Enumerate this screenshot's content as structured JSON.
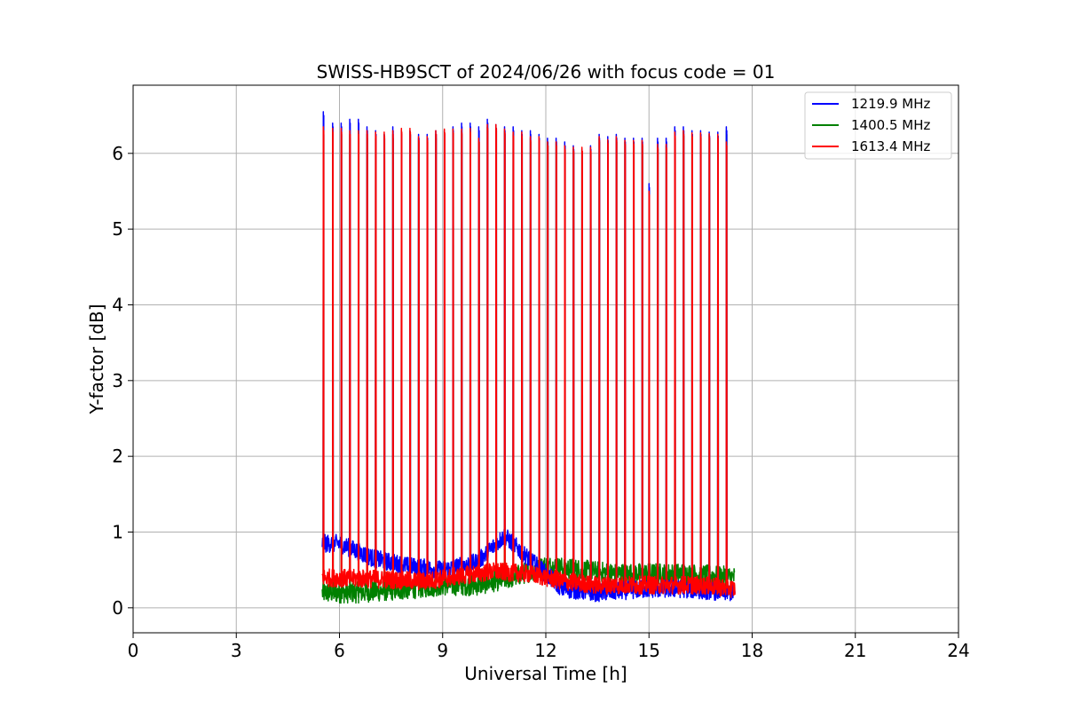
{
  "chart_data": {
    "type": "line",
    "title": "SWISS-HB9SCT of 2024/06/26 with focus code = 01",
    "xlabel": "Universal Time [h]",
    "ylabel": "Y-factor [dB]",
    "xlim": [
      0,
      24
    ],
    "ylim": [
      -0.33,
      6.9
    ],
    "xticks": [
      "0",
      "3",
      "6",
      "9",
      "12",
      "15",
      "18",
      "21",
      "24"
    ],
    "yticks": [
      "0",
      "1",
      "2",
      "3",
      "4",
      "5",
      "6"
    ],
    "grid": true,
    "legend_position": "top-right",
    "time_range": [
      5.5,
      17.5
    ],
    "peak_times": [
      5.53,
      5.8,
      6.05,
      6.3,
      6.55,
      6.8,
      7.05,
      7.3,
      7.55,
      7.8,
      8.05,
      8.3,
      8.55,
      8.8,
      9.05,
      9.3,
      9.55,
      9.8,
      10.05,
      10.3,
      10.55,
      10.8,
      11.05,
      11.3,
      11.55,
      11.8,
      12.05,
      12.3,
      12.55,
      12.8,
      13.05,
      13.3,
      13.55,
      13.8,
      14.05,
      14.3,
      14.55,
      14.8,
      15.0,
      15.25,
      15.5,
      15.75,
      16.0,
      16.25,
      16.5,
      16.75,
      17.0,
      17.25
    ],
    "series": [
      {
        "name": "1219.9 MHz",
        "color": "#0000ff",
        "peak_values": [
          6.55,
          6.4,
          6.4,
          6.45,
          6.45,
          6.35,
          6.3,
          6.25,
          6.35,
          6.3,
          6.3,
          6.25,
          6.25,
          6.3,
          6.3,
          6.35,
          6.4,
          6.4,
          6.35,
          6.45,
          6.38,
          6.35,
          6.35,
          6.3,
          6.3,
          6.25,
          6.2,
          6.2,
          6.15,
          6.1,
          6.05,
          6.1,
          6.25,
          6.22,
          6.25,
          6.2,
          6.2,
          6.2,
          5.6,
          6.2,
          6.2,
          6.35,
          6.35,
          6.3,
          6.3,
          6.28,
          6.28,
          6.35
        ],
        "baseline": [
          [
            5.5,
            0.85
          ],
          [
            6.0,
            0.85
          ],
          [
            7.0,
            0.65
          ],
          [
            8.0,
            0.55
          ],
          [
            9.0,
            0.5
          ],
          [
            10.0,
            0.6
          ],
          [
            10.8,
            0.95
          ],
          [
            11.5,
            0.65
          ],
          [
            12.5,
            0.25
          ],
          [
            13.5,
            0.2
          ],
          [
            15.0,
            0.25
          ],
          [
            16.0,
            0.25
          ],
          [
            17.5,
            0.2
          ]
        ]
      },
      {
        "name": "1400.5 MHz",
        "color": "#008000",
        "peak_values": [
          6.3,
          6.3,
          6.3,
          6.25,
          6.25,
          6.25,
          6.2,
          6.25,
          6.25,
          6.3,
          6.3,
          6.2,
          6.2,
          6.25,
          6.3,
          6.32,
          6.3,
          6.32,
          6.2,
          6.35,
          6.35,
          6.3,
          6.25,
          6.25,
          6.2,
          6.2,
          6.15,
          6.15,
          6.1,
          6.05,
          6.05,
          6.05,
          6.2,
          6.15,
          6.2,
          6.15,
          6.15,
          6.15,
          5.5,
          6.1,
          6.1,
          6.25,
          6.28,
          6.25,
          6.25,
          6.25,
          6.22,
          6.3
        ],
        "baseline": [
          [
            5.5,
            0.2
          ],
          [
            6.5,
            0.2
          ],
          [
            8.0,
            0.25
          ],
          [
            9.0,
            0.3
          ],
          [
            10.0,
            0.3
          ],
          [
            11.0,
            0.4
          ],
          [
            12.0,
            0.55
          ],
          [
            13.0,
            0.5
          ],
          [
            14.0,
            0.45
          ],
          [
            15.0,
            0.45
          ],
          [
            16.0,
            0.45
          ],
          [
            17.5,
            0.4
          ]
        ]
      },
      {
        "name": "1613.4 MHz",
        "color": "#ff0000",
        "peak_values": [
          6.35,
          6.33,
          6.33,
          6.3,
          6.3,
          6.3,
          6.28,
          6.28,
          6.3,
          6.33,
          6.33,
          6.22,
          6.22,
          6.3,
          6.32,
          6.32,
          6.32,
          6.33,
          6.2,
          6.38,
          6.38,
          6.32,
          6.28,
          6.28,
          6.22,
          6.22,
          6.15,
          6.15,
          6.1,
          6.08,
          6.08,
          6.08,
          6.22,
          6.18,
          6.22,
          6.17,
          6.17,
          6.17,
          5.5,
          6.12,
          6.12,
          6.28,
          6.3,
          6.27,
          6.27,
          6.26,
          6.25,
          6.15
        ],
        "baseline": [
          [
            5.5,
            0.4
          ],
          [
            7.0,
            0.38
          ],
          [
            8.5,
            0.35
          ],
          [
            9.5,
            0.42
          ],
          [
            10.5,
            0.48
          ],
          [
            11.5,
            0.45
          ],
          [
            12.5,
            0.35
          ],
          [
            13.5,
            0.3
          ],
          [
            15.0,
            0.3
          ],
          [
            16.5,
            0.3
          ],
          [
            17.5,
            0.25
          ]
        ]
      }
    ]
  }
}
